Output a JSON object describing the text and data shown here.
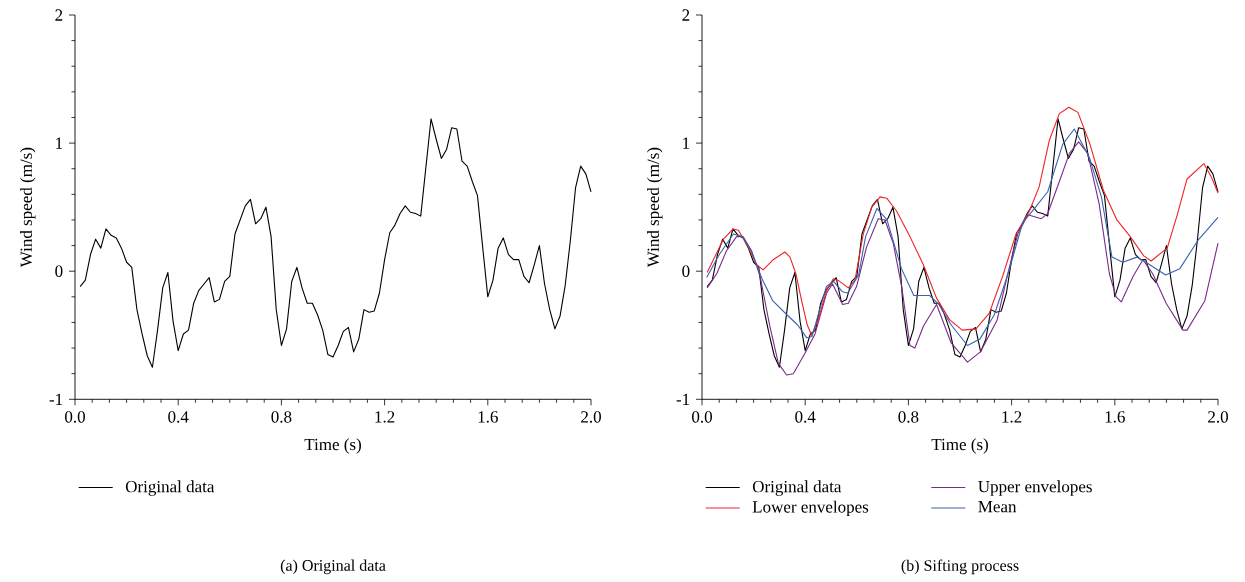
{
  "chart_data": [
    {
      "type": "line",
      "xlabel": "Time (s)",
      "ylabel": "Wind speed (m/s)",
      "xlim": [
        0,
        2
      ],
      "ylim": [
        -1,
        2
      ],
      "xticks": [
        {
          "value": 0,
          "label": "0.0"
        },
        {
          "value": 0.4,
          "label": "0.4"
        },
        {
          "value": 0.8,
          "label": "0.8"
        },
        {
          "value": 1.2,
          "label": "1.2"
        },
        {
          "value": 1.6,
          "label": "1.6"
        },
        {
          "value": 2,
          "label": "2.0"
        }
      ],
      "yticks": [
        -1,
        0,
        1,
        2
      ],
      "legend": "bottom",
      "annotations": [
        "(a)  Original data"
      ],
      "series": [
        {
          "name": "Original data",
          "color": "#000000",
          "x": [
            0.02,
            0.04,
            0.06,
            0.08,
            0.1,
            0.12,
            0.14,
            0.16,
            0.18,
            0.2,
            0.22,
            0.24,
            0.26,
            0.28,
            0.3,
            0.32,
            0.34,
            0.36,
            0.38,
            0.4,
            0.42,
            0.44,
            0.46,
            0.48,
            0.5,
            0.52,
            0.54,
            0.56,
            0.58,
            0.6,
            0.62,
            0.64,
            0.66,
            0.68,
            0.7,
            0.72,
            0.74,
            0.76,
            0.78,
            0.8,
            0.82,
            0.84,
            0.86,
            0.88,
            0.9,
            0.92,
            0.94,
            0.96,
            0.98,
            1.0,
            1.02,
            1.04,
            1.06,
            1.08,
            1.1,
            1.12,
            1.14,
            1.16,
            1.18,
            1.2,
            1.22,
            1.24,
            1.26,
            1.28,
            1.3,
            1.32,
            1.34,
            1.36,
            1.38,
            1.4,
            1.42,
            1.44,
            1.46,
            1.48,
            1.5,
            1.52,
            1.54,
            1.56,
            1.58,
            1.6,
            1.62,
            1.64,
            1.66,
            1.68,
            1.7,
            1.72,
            1.74,
            1.76,
            1.78,
            1.8,
            1.82,
            1.84,
            1.86,
            1.88,
            1.9,
            1.92,
            1.94,
            1.96,
            1.98,
            2.0
          ],
          "values": [
            -0.12,
            -0.07,
            0.13,
            0.25,
            0.18,
            0.33,
            0.28,
            0.26,
            0.18,
            0.07,
            0.03,
            -0.3,
            -0.49,
            -0.66,
            -0.75,
            -0.46,
            -0.13,
            -0.01,
            -0.39,
            -0.62,
            -0.49,
            -0.46,
            -0.25,
            -0.15,
            -0.1,
            -0.05,
            -0.24,
            -0.22,
            -0.08,
            -0.04,
            0.29,
            0.4,
            0.51,
            0.56,
            0.37,
            0.41,
            0.5,
            0.27,
            -0.3,
            -0.58,
            -0.45,
            -0.08,
            0.03,
            -0.13,
            -0.25,
            -0.25,
            -0.34,
            -0.46,
            -0.65,
            -0.67,
            -0.58,
            -0.47,
            -0.44,
            -0.63,
            -0.53,
            -0.3,
            -0.32,
            -0.31,
            -0.17,
            0.09,
            0.3,
            0.36,
            0.45,
            0.51,
            0.46,
            0.45,
            0.43,
            0.81,
            1.19,
            1.03,
            0.88,
            0.95,
            1.12,
            1.11,
            0.86,
            0.82,
            0.7,
            0.59,
            0.19,
            -0.2,
            -0.07,
            0.18,
            0.26,
            0.13,
            0.09,
            0.09,
            -0.04,
            -0.09,
            0.05,
            0.2,
            -0.1,
            -0.3,
            -0.45,
            -0.35,
            -0.11,
            0.24,
            0.65,
            0.82,
            0.76,
            0.62
          ]
        }
      ]
    },
    {
      "type": "line",
      "xlabel": "Time (s)",
      "ylabel": "Wind speed (m/s)",
      "xlim": [
        0,
        2
      ],
      "ylim": [
        -1,
        2
      ],
      "xticks": [
        {
          "value": 0,
          "label": "0.0"
        },
        {
          "value": 0.4,
          "label": "0.4"
        },
        {
          "value": 0.8,
          "label": "0.8"
        },
        {
          "value": 1.2,
          "label": "1.2"
        },
        {
          "value": 1.6,
          "label": "1.6"
        },
        {
          "value": 2,
          "label": "2.0"
        }
      ],
      "yticks": [
        -1,
        0,
        1,
        2
      ],
      "legend": "bottom",
      "annotations": [
        "(b)  Sifting process"
      ],
      "series": [
        {
          "name": "Original data",
          "color": "#000000",
          "x": [
            0.02,
            0.04,
            0.06,
            0.08,
            0.1,
            0.12,
            0.14,
            0.16,
            0.18,
            0.2,
            0.22,
            0.24,
            0.26,
            0.28,
            0.3,
            0.32,
            0.34,
            0.36,
            0.38,
            0.4,
            0.42,
            0.44,
            0.46,
            0.48,
            0.5,
            0.52,
            0.54,
            0.56,
            0.58,
            0.6,
            0.62,
            0.64,
            0.66,
            0.68,
            0.7,
            0.72,
            0.74,
            0.76,
            0.78,
            0.8,
            0.82,
            0.84,
            0.86,
            0.88,
            0.9,
            0.92,
            0.94,
            0.96,
            0.98,
            1.0,
            1.02,
            1.04,
            1.06,
            1.08,
            1.1,
            1.12,
            1.14,
            1.16,
            1.18,
            1.2,
            1.22,
            1.24,
            1.26,
            1.28,
            1.3,
            1.32,
            1.34,
            1.36,
            1.38,
            1.4,
            1.42,
            1.44,
            1.46,
            1.48,
            1.5,
            1.52,
            1.54,
            1.56,
            1.58,
            1.6,
            1.62,
            1.64,
            1.66,
            1.68,
            1.7,
            1.72,
            1.74,
            1.76,
            1.78,
            1.8,
            1.82,
            1.84,
            1.86,
            1.88,
            1.9,
            1.92,
            1.94,
            1.96,
            1.98,
            2.0
          ],
          "values": [
            -0.12,
            -0.07,
            0.13,
            0.25,
            0.18,
            0.33,
            0.28,
            0.26,
            0.18,
            0.07,
            0.03,
            -0.3,
            -0.49,
            -0.66,
            -0.75,
            -0.46,
            -0.13,
            -0.01,
            -0.39,
            -0.62,
            -0.49,
            -0.46,
            -0.25,
            -0.15,
            -0.1,
            -0.05,
            -0.24,
            -0.22,
            -0.08,
            -0.04,
            0.29,
            0.4,
            0.51,
            0.56,
            0.37,
            0.41,
            0.5,
            0.27,
            -0.3,
            -0.58,
            -0.45,
            -0.08,
            0.03,
            -0.13,
            -0.25,
            -0.25,
            -0.34,
            -0.46,
            -0.65,
            -0.67,
            -0.58,
            -0.47,
            -0.44,
            -0.63,
            -0.53,
            -0.3,
            -0.32,
            -0.31,
            -0.17,
            0.09,
            0.3,
            0.36,
            0.45,
            0.51,
            0.46,
            0.45,
            0.43,
            0.81,
            1.19,
            1.03,
            0.88,
            0.95,
            1.12,
            1.11,
            0.86,
            0.82,
            0.7,
            0.59,
            0.19,
            -0.2,
            -0.07,
            0.18,
            0.26,
            0.13,
            0.09,
            0.09,
            -0.04,
            -0.09,
            0.05,
            0.2,
            -0.1,
            -0.3,
            -0.45,
            -0.35,
            -0.11,
            0.24,
            0.65,
            0.82,
            0.76,
            0.62
          ]
        },
        {
          "name": "Upper envelopes",
          "color": "#7b2a8a",
          "x": [
            0.02,
            0.057,
            0.095,
            0.134,
            0.159,
            0.192,
            0.225,
            0.263,
            0.296,
            0.328,
            0.354,
            0.399,
            0.438,
            0.483,
            0.506,
            0.545,
            0.567,
            0.599,
            0.638,
            0.683,
            0.709,
            0.741,
            0.774,
            0.806,
            0.825,
            0.858,
            0.909,
            0.966,
            1.029,
            1.079,
            1.144,
            1.185,
            1.224,
            1.263,
            1.315,
            1.34,
            1.385,
            1.424,
            1.46,
            1.495,
            1.539,
            1.579,
            1.605,
            1.625,
            1.671,
            1.709,
            1.747,
            1.799,
            1.864,
            1.88,
            1.949,
            2.0
          ],
          "values": [
            -0.13,
            -0.02,
            0.16,
            0.27,
            0.27,
            0.16,
            -0.04,
            -0.43,
            -0.72,
            -0.81,
            -0.8,
            -0.64,
            -0.49,
            -0.17,
            -0.1,
            -0.26,
            -0.25,
            -0.12,
            0.19,
            0.41,
            0.4,
            0.22,
            -0.12,
            -0.58,
            -0.6,
            -0.43,
            -0.26,
            -0.56,
            -0.71,
            -0.63,
            -0.38,
            -0.02,
            0.29,
            0.44,
            0.41,
            0.45,
            0.7,
            0.92,
            1.01,
            0.92,
            0.53,
            -0.02,
            -0.2,
            -0.24,
            -0.04,
            0.09,
            -0.02,
            -0.25,
            -0.46,
            -0.46,
            -0.23,
            0.22
          ]
        },
        {
          "name": "Lower envelopes",
          "color": "#ee2227",
          "x": [
            0.02,
            0.083,
            0.121,
            0.141,
            0.179,
            0.212,
            0.237,
            0.276,
            0.321,
            0.341,
            0.364,
            0.386,
            0.408,
            0.425,
            0.45,
            0.483,
            0.509,
            0.527,
            0.567,
            0.593,
            0.625,
            0.658,
            0.69,
            0.716,
            0.754,
            0.806,
            0.858,
            0.909,
            0.96,
            1.009,
            1.062,
            1.113,
            1.165,
            1.217,
            1.269,
            1.307,
            1.346,
            1.385,
            1.422,
            1.457,
            1.504,
            1.556,
            1.608,
            1.66,
            1.712,
            1.741,
            1.803,
            1.842,
            1.88,
            1.945,
            1.973,
            2.0
          ],
          "values": [
            -0.01,
            0.25,
            0.33,
            0.32,
            0.19,
            0.05,
            0.01,
            0.09,
            0.15,
            0.11,
            -0.02,
            -0.23,
            -0.42,
            -0.5,
            -0.38,
            -0.15,
            -0.06,
            -0.07,
            -0.13,
            -0.07,
            0.29,
            0.5,
            0.58,
            0.57,
            0.47,
            0.27,
            0.05,
            -0.21,
            -0.38,
            -0.46,
            -0.45,
            -0.33,
            -0.04,
            0.29,
            0.47,
            0.66,
            1.02,
            1.23,
            1.28,
            1.24,
            0.99,
            0.63,
            0.4,
            0.27,
            0.12,
            0.08,
            0.18,
            0.44,
            0.72,
            0.84,
            0.74,
            0.61
          ]
        },
        {
          "name": "Mean",
          "color": "#3a62b0",
          "x": [
            0.018,
            0.067,
            0.122,
            0.157,
            0.191,
            0.233,
            0.274,
            0.329,
            0.371,
            0.406,
            0.426,
            0.482,
            0.51,
            0.544,
            0.565,
            0.607,
            0.634,
            0.678,
            0.717,
            0.773,
            0.821,
            0.883,
            0.918,
            0.966,
            1.029,
            1.077,
            1.133,
            1.188,
            1.243,
            1.285,
            1.34,
            1.398,
            1.443,
            1.501,
            1.548,
            1.589,
            1.631,
            1.686,
            1.728,
            1.797,
            1.852,
            1.922,
            2.0
          ],
          "values": [
            -0.05,
            0.13,
            0.29,
            0.27,
            0.16,
            -0.06,
            -0.23,
            -0.34,
            -0.42,
            -0.52,
            -0.51,
            -0.12,
            -0.08,
            -0.16,
            -0.17,
            -0.03,
            0.27,
            0.49,
            0.4,
            0.02,
            -0.19,
            -0.19,
            -0.26,
            -0.42,
            -0.58,
            -0.53,
            -0.34,
            -0.01,
            0.38,
            0.48,
            0.62,
            0.99,
            1.11,
            0.89,
            0.58,
            0.11,
            0.07,
            0.11,
            0.06,
            -0.03,
            0.02,
            0.24,
            0.42
          ]
        }
      ]
    }
  ]
}
